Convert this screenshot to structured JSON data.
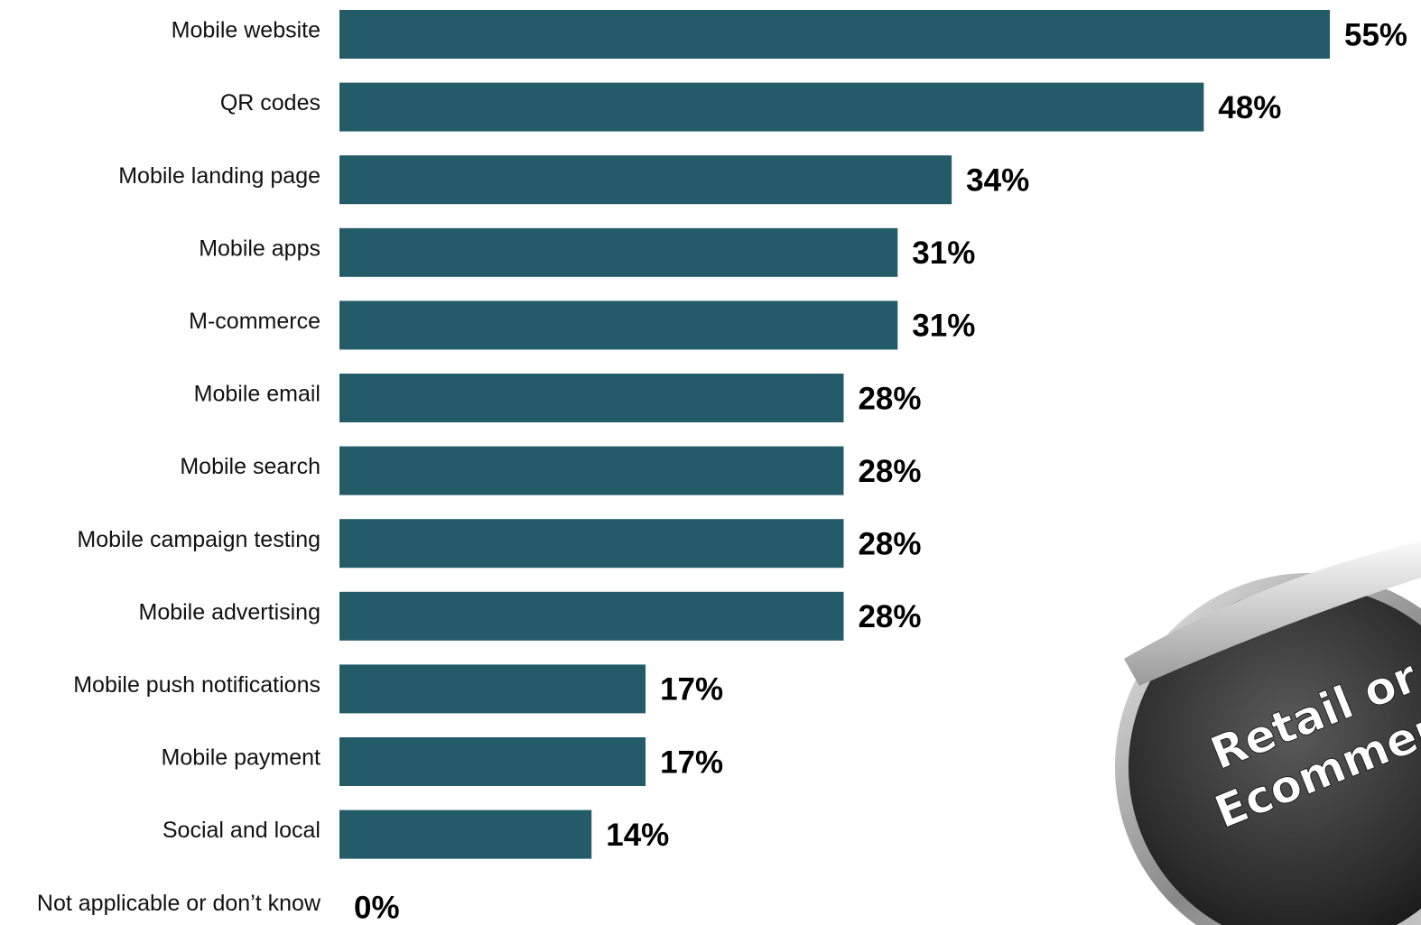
{
  "chart_data": {
    "type": "bar",
    "categories": [
      "Mobile website",
      "QR codes",
      "Mobile landing page",
      "Mobile apps",
      "M-commerce",
      "Mobile email",
      "Mobile search",
      "Mobile campaign testing",
      "Mobile advertising",
      "Mobile push notifications",
      "Mobile payment",
      "Social and local",
      "Not applicable or don’t know"
    ],
    "values": [
      55,
      48,
      34,
      31,
      31,
      28,
      28,
      28,
      28,
      17,
      17,
      14,
      0
    ],
    "value_labels": [
      "55%",
      "48%",
      "34%",
      "31%",
      "31%",
      "28%",
      "28%",
      "28%",
      "28%",
      "17%",
      "17%",
      "14%",
      "0%"
    ],
    "color": "#235b69"
  },
  "badge": {
    "lines": [
      "Retail or",
      "Ecommerce"
    ]
  }
}
